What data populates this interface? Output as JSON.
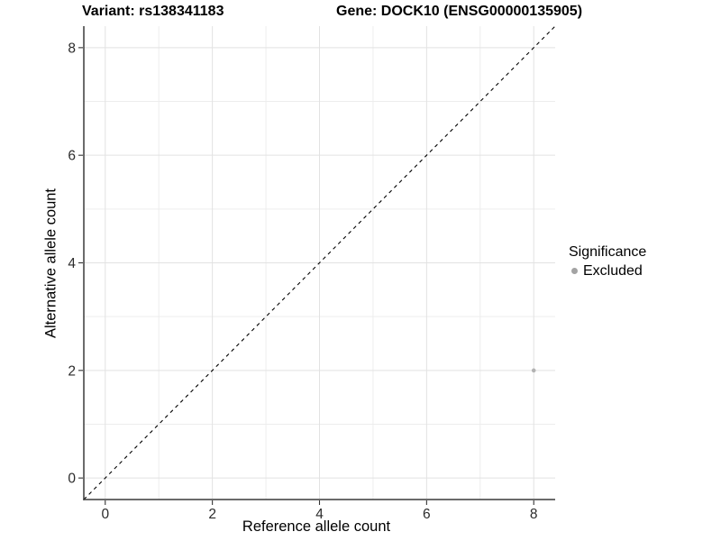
{
  "chart_data": {
    "type": "scatter",
    "titles": {
      "left": "Variant: rs138341183",
      "right": "Gene: DOCK10 (ENSG00000135905)"
    },
    "xlabel": "Reference allele count",
    "ylabel": "Alternative allele count",
    "xlim": [
      -0.4,
      8.4
    ],
    "ylim": [
      -0.4,
      8.4
    ],
    "xticks": [
      0,
      2,
      4,
      6,
      8
    ],
    "yticks": [
      0,
      2,
      4,
      6,
      8
    ],
    "minor_gridlines_x": [
      1,
      3,
      5,
      7
    ],
    "minor_gridlines_y": [
      1,
      3,
      5,
      7
    ],
    "grid": "on",
    "reference_line": {
      "type": "identity-diagonal",
      "style": "dashed",
      "from": [
        -0.4,
        -0.4
      ],
      "to": [
        8.4,
        8.4
      ],
      "color": "#000000"
    },
    "series": [
      {
        "name": "Excluded",
        "color": "#b3b3b3",
        "point_radius": 2.3,
        "points": [
          [
            8,
            2
          ]
        ]
      }
    ],
    "legend": {
      "title": "Significance",
      "position": "right",
      "entries": [
        {
          "label": "Excluded",
          "color": "#a3a3a3"
        }
      ]
    },
    "style": {
      "background": "#ffffff",
      "grid_major_color": "#e2e2e2",
      "grid_minor_color": "#ededed",
      "axis_line_color": "#3a3a3a",
      "tick_color": "#333333",
      "tick_label_color": "#2b2b2b"
    }
  }
}
